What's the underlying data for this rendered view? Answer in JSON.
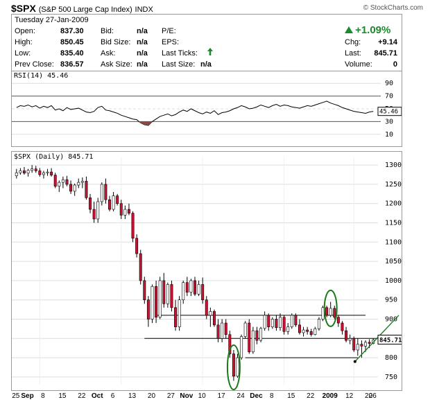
{
  "header": {
    "symbol": "$SPX",
    "name": "(S&P 500 Large Cap Index)",
    "exchange": "INDX",
    "brand": "© StockCharts.com"
  },
  "quote": {
    "date": "Tuesday  27-Jan-2009",
    "open_label": "Open:",
    "open": "837.30",
    "high_label": "High:",
    "high": "850.45",
    "low_label": "Low:",
    "low": "835.40",
    "prev_label": "Prev Close:",
    "prev": "836.57",
    "bid_label": "Bid:",
    "bid": "n/a",
    "bidsize_label": "Bid Size:",
    "bidsize": "n/a",
    "ask_label": "Ask:",
    "ask": "n/a",
    "asksize_label": "Ask Size:",
    "asksize": "n/a",
    "pe_label": "P/E:",
    "eps_label": "EPS:",
    "lastticks_label": "Last Ticks:",
    "lastsize_label": "Last Size:",
    "lastsize": "n/a",
    "pct_change": "+1.09%",
    "chg_label": "Chg:",
    "chg": "+9.14",
    "last_label": "Last:",
    "last": "845.71",
    "volume_label": "Volume:",
    "volume": "0",
    "up_color": "#1a8a2a"
  },
  "rsi": {
    "label": "RSI(14) 45.46",
    "value": "45.46",
    "ticks": [
      "90",
      "70",
      "50",
      "30",
      "10"
    ],
    "line_color": "#000000",
    "oversold_fill": "#8a4a4a"
  },
  "price": {
    "label": "$SPX (Daily) 845.71",
    "last_marker": "845.71",
    "ticks": [
      "1300",
      "1250",
      "1200",
      "1150",
      "1100",
      "1050",
      "1000",
      "950",
      "900",
      "850",
      "800",
      "750"
    ],
    "up_color": "#ffffff",
    "down_color": "#cc1133"
  },
  "x_axis": {
    "labels": [
      "25",
      "Sep",
      "8",
      "15",
      "22",
      "Oct",
      "6",
      "13",
      "20",
      "27",
      "Nov",
      "10",
      "17",
      "24",
      "Dec",
      "8",
      "15",
      "22",
      "2009",
      "12",
      "20",
      "26"
    ]
  },
  "chart_data": {
    "type": "candlestick",
    "title": "$SPX (Daily) 845.71",
    "ylim": [
      730,
      1320
    ],
    "rsi_ylim": [
      0,
      100
    ],
    "candles": [
      {
        "o": 1272,
        "h": 1290,
        "l": 1265,
        "c": 1280
      },
      {
        "o": 1280,
        "h": 1292,
        "l": 1275,
        "c": 1285
      },
      {
        "o": 1285,
        "h": 1295,
        "l": 1275,
        "c": 1279
      },
      {
        "o": 1279,
        "h": 1290,
        "l": 1270,
        "c": 1286
      },
      {
        "o": 1286,
        "h": 1300,
        "l": 1280,
        "c": 1290
      },
      {
        "o": 1290,
        "h": 1298,
        "l": 1280,
        "c": 1285
      },
      {
        "o": 1285,
        "h": 1292,
        "l": 1270,
        "c": 1275
      },
      {
        "o": 1275,
        "h": 1285,
        "l": 1265,
        "c": 1280
      },
      {
        "o": 1280,
        "h": 1290,
        "l": 1272,
        "c": 1282
      },
      {
        "o": 1282,
        "h": 1292,
        "l": 1270,
        "c": 1274
      },
      {
        "o": 1274,
        "h": 1280,
        "l": 1240,
        "c": 1245
      },
      {
        "o": 1245,
        "h": 1260,
        "l": 1230,
        "c": 1255
      },
      {
        "o": 1255,
        "h": 1270,
        "l": 1240,
        "c": 1262
      },
      {
        "o": 1262,
        "h": 1272,
        "l": 1245,
        "c": 1250
      },
      {
        "o": 1250,
        "h": 1260,
        "l": 1225,
        "c": 1232
      },
      {
        "o": 1232,
        "h": 1252,
        "l": 1220,
        "c": 1248
      },
      {
        "o": 1248,
        "h": 1265,
        "l": 1240,
        "c": 1255
      },
      {
        "o": 1255,
        "h": 1268,
        "l": 1240,
        "c": 1258
      },
      {
        "o": 1258,
        "h": 1270,
        "l": 1210,
        "c": 1215
      },
      {
        "o": 1215,
        "h": 1225,
        "l": 1175,
        "c": 1185
      },
      {
        "o": 1185,
        "h": 1205,
        "l": 1150,
        "c": 1160
      },
      {
        "o": 1160,
        "h": 1215,
        "l": 1150,
        "c": 1205
      },
      {
        "o": 1205,
        "h": 1255,
        "l": 1195,
        "c": 1250
      },
      {
        "o": 1250,
        "h": 1265,
        "l": 1200,
        "c": 1210
      },
      {
        "o": 1210,
        "h": 1220,
        "l": 1180,
        "c": 1185
      },
      {
        "o": 1185,
        "h": 1230,
        "l": 1180,
        "c": 1220
      },
      {
        "o": 1220,
        "h": 1225,
        "l": 1195,
        "c": 1200
      },
      {
        "o": 1200,
        "h": 1210,
        "l": 1160,
        "c": 1170
      },
      {
        "o": 1170,
        "h": 1195,
        "l": 1160,
        "c": 1185
      },
      {
        "o": 1185,
        "h": 1200,
        "l": 1170,
        "c": 1175
      },
      {
        "o": 1175,
        "h": 1180,
        "l": 1100,
        "c": 1110
      },
      {
        "o": 1110,
        "h": 1120,
        "l": 1060,
        "c": 1070
      },
      {
        "o": 1070,
        "h": 1080,
        "l": 990,
        "c": 1000
      },
      {
        "o": 1000,
        "h": 1010,
        "l": 940,
        "c": 950
      },
      {
        "o": 950,
        "h": 960,
        "l": 880,
        "c": 900
      },
      {
        "o": 900,
        "h": 990,
        "l": 890,
        "c": 985
      },
      {
        "o": 985,
        "h": 1000,
        "l": 890,
        "c": 905
      },
      {
        "o": 905,
        "h": 1010,
        "l": 900,
        "c": 1000
      },
      {
        "o": 1000,
        "h": 1020,
        "l": 930,
        "c": 940
      },
      {
        "o": 940,
        "h": 995,
        "l": 930,
        "c": 990
      },
      {
        "o": 990,
        "h": 1000,
        "l": 920,
        "c": 930
      },
      {
        "o": 930,
        "h": 950,
        "l": 870,
        "c": 880
      },
      {
        "o": 880,
        "h": 960,
        "l": 870,
        "c": 950
      },
      {
        "o": 950,
        "h": 1000,
        "l": 940,
        "c": 995
      },
      {
        "o": 995,
        "h": 1010,
        "l": 960,
        "c": 970
      },
      {
        "o": 970,
        "h": 1005,
        "l": 960,
        "c": 1000
      },
      {
        "o": 1000,
        "h": 1010,
        "l": 960,
        "c": 965
      },
      {
        "o": 965,
        "h": 1000,
        "l": 960,
        "c": 990
      },
      {
        "o": 990,
        "h": 1008,
        "l": 940,
        "c": 950
      },
      {
        "o": 950,
        "h": 960,
        "l": 900,
        "c": 910
      },
      {
        "o": 910,
        "h": 930,
        "l": 880,
        "c": 920
      },
      {
        "o": 920,
        "h": 925,
        "l": 880,
        "c": 885
      },
      {
        "o": 885,
        "h": 900,
        "l": 840,
        "c": 850
      },
      {
        "o": 850,
        "h": 900,
        "l": 840,
        "c": 890
      },
      {
        "o": 890,
        "h": 900,
        "l": 850,
        "c": 860
      },
      {
        "o": 860,
        "h": 870,
        "l": 800,
        "c": 810
      },
      {
        "o": 810,
        "h": 820,
        "l": 740,
        "c": 752
      },
      {
        "o": 752,
        "h": 810,
        "l": 748,
        "c": 800
      },
      {
        "o": 800,
        "h": 860,
        "l": 795,
        "c": 855
      },
      {
        "o": 855,
        "h": 895,
        "l": 850,
        "c": 890
      },
      {
        "o": 890,
        "h": 900,
        "l": 810,
        "c": 815
      },
      {
        "o": 815,
        "h": 880,
        "l": 810,
        "c": 870
      },
      {
        "o": 870,
        "h": 880,
        "l": 835,
        "c": 845
      },
      {
        "o": 845,
        "h": 880,
        "l": 840,
        "c": 876
      },
      {
        "o": 876,
        "h": 920,
        "l": 870,
        "c": 910
      },
      {
        "o": 910,
        "h": 915,
        "l": 870,
        "c": 880
      },
      {
        "o": 880,
        "h": 905,
        "l": 875,
        "c": 900
      },
      {
        "o": 900,
        "h": 910,
        "l": 870,
        "c": 878
      },
      {
        "o": 878,
        "h": 915,
        "l": 870,
        "c": 905
      },
      {
        "o": 905,
        "h": 910,
        "l": 860,
        "c": 868
      },
      {
        "o": 868,
        "h": 890,
        "l": 860,
        "c": 880
      },
      {
        "o": 880,
        "h": 915,
        "l": 875,
        "c": 910
      },
      {
        "o": 910,
        "h": 915,
        "l": 880,
        "c": 885
      },
      {
        "o": 885,
        "h": 900,
        "l": 860,
        "c": 865
      },
      {
        "o": 865,
        "h": 880,
        "l": 855,
        "c": 872
      },
      {
        "o": 872,
        "h": 880,
        "l": 860,
        "c": 868
      },
      {
        "o": 868,
        "h": 875,
        "l": 855,
        "c": 860
      },
      {
        "o": 860,
        "h": 880,
        "l": 858,
        "c": 875
      },
      {
        "o": 875,
        "h": 905,
        "l": 870,
        "c": 900
      },
      {
        "o": 900,
        "h": 935,
        "l": 895,
        "c": 930
      },
      {
        "o": 930,
        "h": 935,
        "l": 905,
        "c": 910
      },
      {
        "o": 910,
        "h": 945,
        "l": 905,
        "c": 928
      },
      {
        "o": 928,
        "h": 935,
        "l": 900,
        "c": 905
      },
      {
        "o": 905,
        "h": 910,
        "l": 880,
        "c": 890
      },
      {
        "o": 890,
        "h": 895,
        "l": 860,
        "c": 870
      },
      {
        "o": 870,
        "h": 880,
        "l": 840,
        "c": 845
      },
      {
        "o": 845,
        "h": 860,
        "l": 835,
        "c": 850
      },
      {
        "o": 850,
        "h": 855,
        "l": 815,
        "c": 820
      },
      {
        "o": 820,
        "h": 850,
        "l": 805,
        "c": 835
      },
      {
        "o": 835,
        "h": 845,
        "l": 800,
        "c": 830
      },
      {
        "o": 830,
        "h": 845,
        "l": 815,
        "c": 840
      },
      {
        "o": 840,
        "h": 848,
        "l": 825,
        "c": 837
      },
      {
        "o": 837,
        "h": 850,
        "l": 835,
        "c": 846
      }
    ],
    "rsi_values": [
      52,
      55,
      54,
      56,
      53,
      55,
      51,
      54,
      52,
      55,
      48,
      50,
      47,
      52,
      49,
      50,
      51,
      48,
      45,
      44,
      46,
      52,
      54,
      48,
      47,
      45,
      43,
      40,
      38,
      36,
      34,
      33,
      28,
      25,
      24,
      30,
      34,
      38,
      40,
      42,
      39,
      41,
      45,
      48,
      46,
      50,
      47,
      44,
      42,
      45,
      43,
      47,
      41,
      44,
      45,
      47,
      50,
      52,
      55,
      53,
      50,
      51,
      53,
      56,
      54,
      52,
      55,
      57,
      54,
      56,
      55,
      53,
      52,
      51,
      53,
      55,
      54,
      56,
      58,
      60,
      62,
      59,
      57,
      55,
      52,
      50,
      48,
      46,
      45,
      44,
      43,
      45,
      46
    ],
    "horizontal_levels": [
      910,
      850,
      800
    ],
    "annotations": [
      "circle at Nov 21 low",
      "circle at early January high",
      "rising trendline from January low"
    ]
  }
}
